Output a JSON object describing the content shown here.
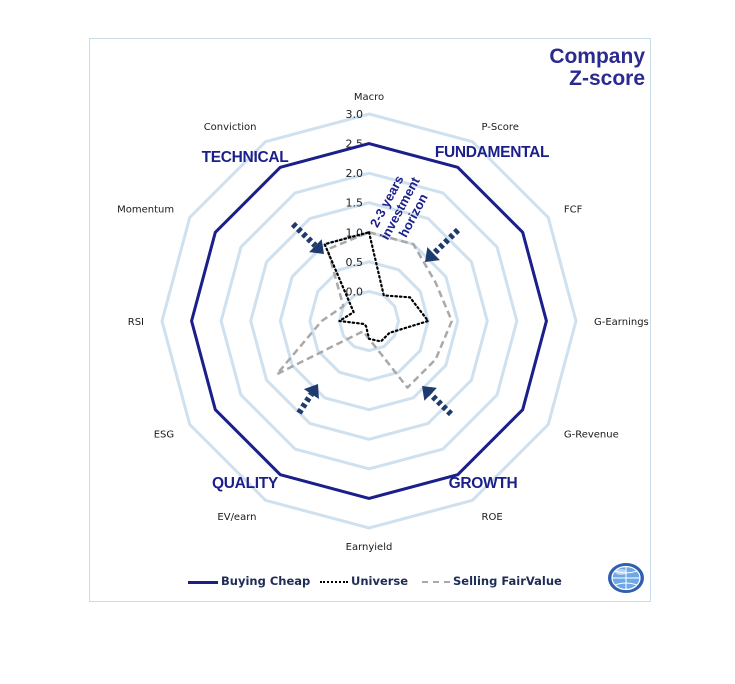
{
  "title_line1": "Company",
  "title_line2": "Z-score",
  "horizon_note": [
    "2-3 years",
    "investment",
    "horizon"
  ],
  "groups": [
    "TECHNICAL",
    "FUNDAMENTAL",
    "GROWTH",
    "QUALITY"
  ],
  "colors": {
    "buying": "#1b1f8a",
    "universe": "#000000",
    "selling": "#a9a9a9",
    "grid": "#cfe0ef",
    "group": "#1b1f8a",
    "arrow": "#1e3a6e"
  },
  "chart_data": {
    "type": "radar",
    "title": "Company Z-score",
    "axes": [
      "Macro",
      "P-Score",
      "FCF",
      "G-Earnings",
      "G-Revenue",
      "ROE",
      "Earnyield",
      "EV/earn",
      "ESG",
      "RSI",
      "Momentum",
      "Conviction"
    ],
    "scale_ticks": [
      "0.0",
      "0.5",
      "1.0",
      "1.5",
      "2.0",
      "2.5",
      "3.0"
    ],
    "range": [
      -0.5,
      3.0
    ],
    "grid": true,
    "legend_position": "bottom",
    "series": [
      {
        "name": "Buying Cheap",
        "values": [
          2.5,
          2.5,
          2.5,
          2.5,
          2.5,
          2.5,
          2.5,
          2.5,
          2.5,
          2.5,
          2.5,
          2.5
        ]
      },
      {
        "name": "Universe",
        "values": [
          1.0,
          0.0,
          0.3,
          0.5,
          -0.1,
          -0.1,
          -0.2,
          -0.4,
          -0.4,
          0.0,
          -0.2,
          1.0
        ]
      },
      {
        "name": "Selling FairValue",
        "values": [
          1.0,
          1.0,
          0.8,
          0.9,
          0.8,
          0.8,
          -0.2,
          -0.3,
          1.3,
          0.3,
          0.0,
          0.9
        ]
      }
    ]
  }
}
